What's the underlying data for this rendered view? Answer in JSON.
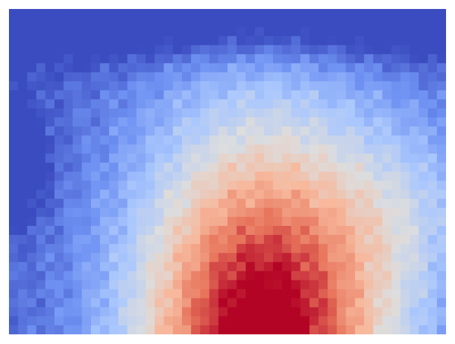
{
  "chart_data": {
    "type": "heatmap",
    "grid": {
      "rows": 36,
      "cols": 48
    },
    "value_range": [
      0,
      1
    ],
    "colormap": "coolwarm",
    "colorbar_shown": false,
    "axes_shown": false,
    "color_stops": [
      "#3b4cc0",
      "#6f92f3",
      "#aac7fd",
      "#dddddd",
      "#f7b89c",
      "#e7745b",
      "#b40426"
    ],
    "features": {
      "hot_spot": {
        "col": 28,
        "row": 35,
        "value": 1.0
      },
      "cold_band_top": {
        "row": 2,
        "value": 0.08
      },
      "cold_left_edge": {
        "col": 1,
        "row": 17,
        "value": 0.03
      }
    }
  }
}
